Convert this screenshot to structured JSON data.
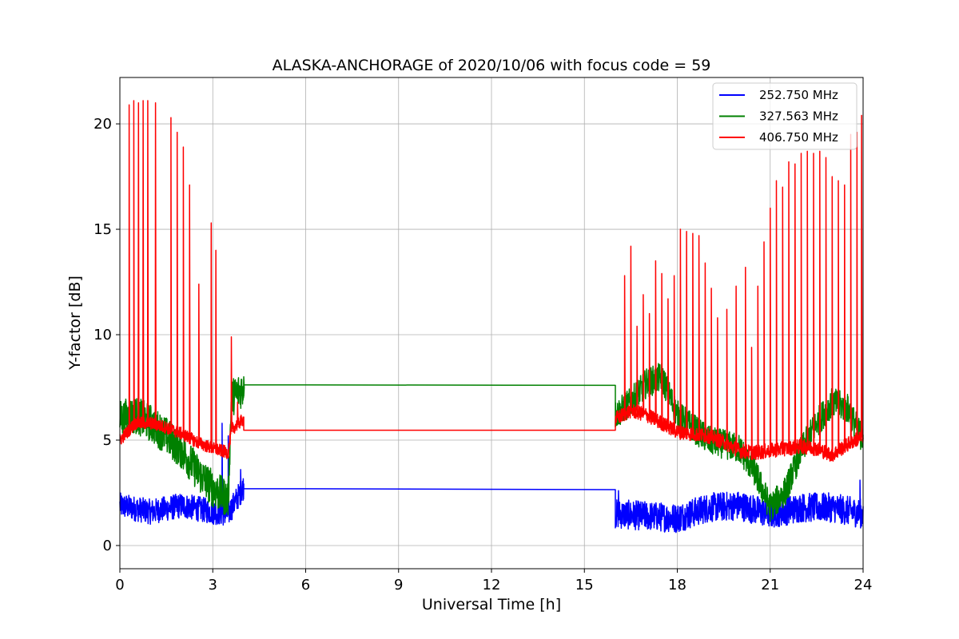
{
  "chart_data": {
    "type": "line",
    "title": "ALASKA-ANCHORAGE of 2020/10/06 with focus code = 59",
    "xlabel": "Universal Time [h]",
    "ylabel": "Y-factor [dB]",
    "xlim": [
      0,
      24
    ],
    "ylim": [
      -1.1,
      22.2
    ],
    "xticks": [
      0,
      3,
      6,
      9,
      12,
      15,
      18,
      21,
      24
    ],
    "yticks": [
      0,
      5,
      10,
      15,
      20
    ],
    "grid": true,
    "legend_position": "top-right",
    "series": [
      {
        "name": "252.750 MHz",
        "color": "#0000ff",
        "segments": [
          {
            "range": [
              0,
              4.0
            ],
            "base": [
              [
                0,
                1.9
              ],
              [
                1,
                1.6
              ],
              [
                2,
                1.9
              ],
              [
                3,
                1.6
              ],
              [
                3.5,
                1.5
              ],
              [
                4.0,
                2.8
              ]
            ],
            "amp": 0.6,
            "spikes": [
              [
                3.3,
                5.8
              ],
              [
                3.5,
                5.2
              ],
              [
                3.9,
                3.6
              ]
            ]
          },
          {
            "range": [
              4.0,
              16.0
            ],
            "flat": [
              2.7,
              2.65
            ]
          },
          {
            "range": [
              16.0,
              24.0
            ],
            "base": [
              [
                16,
                1.5
              ],
              [
                17,
                1.4
              ],
              [
                18,
                1.3
              ],
              [
                19,
                1.8
              ],
              [
                20,
                1.9
              ],
              [
                21,
                1.5
              ],
              [
                22,
                1.8
              ],
              [
                23,
                1.8
              ],
              [
                24,
                1.5
              ]
            ],
            "amp": 0.7,
            "spikes": [
              [
                16.1,
                2.6
              ],
              [
                23.9,
                3.1
              ]
            ]
          }
        ]
      },
      {
        "name": "327.563 MHz",
        "color": "#008000",
        "segments": [
          {
            "range": [
              0,
              4.0
            ],
            "base": [
              [
                0,
                6.0
              ],
              [
                0.5,
                6.2
              ],
              [
                1.0,
                5.8
              ],
              [
                1.5,
                5.2
              ],
              [
                2.0,
                4.5
              ],
              [
                2.5,
                3.5
              ],
              [
                3.0,
                2.7
              ],
              [
                3.5,
                2.2
              ],
              [
                3.6,
                7.0
              ],
              [
                4.0,
                7.5
              ]
            ],
            "amp": 0.9,
            "spikes": [
              [
                3.7,
                7.8
              ],
              [
                4.0,
                8.0
              ]
            ]
          },
          {
            "range": [
              4.0,
              16.0
            ],
            "flat": [
              7.62,
              7.6
            ]
          },
          {
            "range": [
              16.0,
              24.0
            ],
            "base": [
              [
                16,
                6.2
              ],
              [
                16.5,
                6.8
              ],
              [
                17,
                7.7
              ],
              [
                17.5,
                8.0
              ],
              [
                18,
                6.2
              ],
              [
                19,
                5.0
              ],
              [
                20,
                4.6
              ],
              [
                20.5,
                3.5
              ],
              [
                21,
                1.8
              ],
              [
                21.5,
                2.6
              ],
              [
                22,
                4.5
              ],
              [
                22.5,
                5.8
              ],
              [
                23,
                6.8
              ],
              [
                23.5,
                6.5
              ],
              [
                24,
                5.0
              ]
            ],
            "amp": 0.7,
            "spikes": [
              [
                17.3,
                8.6
              ],
              [
                23.2,
                7.4
              ]
            ]
          }
        ]
      },
      {
        "name": "406.750 MHz",
        "color": "#ff0000",
        "segments": [
          {
            "range": [
              0,
              4.0
            ],
            "base": [
              [
                0,
                5.0
              ],
              [
                0.5,
                5.8
              ],
              [
                1.0,
                5.8
              ],
              [
                1.5,
                5.6
              ],
              [
                2.0,
                5.3
              ],
              [
                2.5,
                4.9
              ],
              [
                3.0,
                4.6
              ],
              [
                3.5,
                4.4
              ],
              [
                3.6,
                5.5
              ],
              [
                4.0,
                6.0
              ]
            ],
            "amp": 0.3,
            "spikes": [
              [
                0.3,
                20.9
              ],
              [
                0.45,
                21.1
              ],
              [
                0.6,
                21.0
              ],
              [
                0.75,
                21.1
              ],
              [
                0.9,
                21.1
              ],
              [
                1.15,
                21.0
              ],
              [
                1.65,
                20.3
              ],
              [
                1.85,
                19.6
              ],
              [
                2.05,
                18.9
              ],
              [
                2.25,
                17.1
              ],
              [
                2.55,
                12.4
              ],
              [
                2.95,
                15.3
              ],
              [
                3.1,
                14.0
              ],
              [
                3.6,
                9.9
              ],
              [
                3.8,
                6.8
              ]
            ]
          },
          {
            "range": [
              4.0,
              16.0
            ],
            "flat": [
              5.47,
              5.47
            ]
          },
          {
            "range": [
              16.0,
              24.0
            ],
            "base": [
              [
                16,
                6.0
              ],
              [
                16.5,
                6.4
              ],
              [
                17,
                6.2
              ],
              [
                17.5,
                5.8
              ],
              [
                18,
                5.4
              ],
              [
                18.5,
                5.3
              ],
              [
                19,
                5.2
              ],
              [
                19.5,
                4.9
              ],
              [
                20,
                4.5
              ],
              [
                20.5,
                4.4
              ],
              [
                21,
                4.5
              ],
              [
                21.5,
                4.6
              ],
              [
                22,
                4.7
              ],
              [
                22.5,
                4.6
              ],
              [
                23,
                4.3
              ],
              [
                23.5,
                4.8
              ],
              [
                24,
                5.2
              ]
            ],
            "amp": 0.35,
            "spikes": [
              [
                16.3,
                12.8
              ],
              [
                16.5,
                14.2
              ],
              [
                16.7,
                10.4
              ],
              [
                16.9,
                11.9
              ],
              [
                17.1,
                11.0
              ],
              [
                17.3,
                13.5
              ],
              [
                17.5,
                12.9
              ],
              [
                17.7,
                11.7
              ],
              [
                17.9,
                12.8
              ],
              [
                18.1,
                15.0
              ],
              [
                18.3,
                14.9
              ],
              [
                18.5,
                14.8
              ],
              [
                18.7,
                14.7
              ],
              [
                18.9,
                13.4
              ],
              [
                19.1,
                12.2
              ],
              [
                19.3,
                10.8
              ],
              [
                19.6,
                11.2
              ],
              [
                19.9,
                12.3
              ],
              [
                20.2,
                13.2
              ],
              [
                20.4,
                9.4
              ],
              [
                20.6,
                12.3
              ],
              [
                20.8,
                14.4
              ],
              [
                21.0,
                16.0
              ],
              [
                21.2,
                17.3
              ],
              [
                21.4,
                17.0
              ],
              [
                21.6,
                18.2
              ],
              [
                21.8,
                18.1
              ],
              [
                22.0,
                18.6
              ],
              [
                22.2,
                18.7
              ],
              [
                22.4,
                18.6
              ],
              [
                22.6,
                18.7
              ],
              [
                22.8,
                18.4
              ],
              [
                23.0,
                17.5
              ],
              [
                23.2,
                17.3
              ],
              [
                23.4,
                17.1
              ],
              [
                23.6,
                19.5
              ],
              [
                23.8,
                19.6
              ],
              [
                23.95,
                20.4
              ]
            ]
          }
        ]
      }
    ]
  }
}
